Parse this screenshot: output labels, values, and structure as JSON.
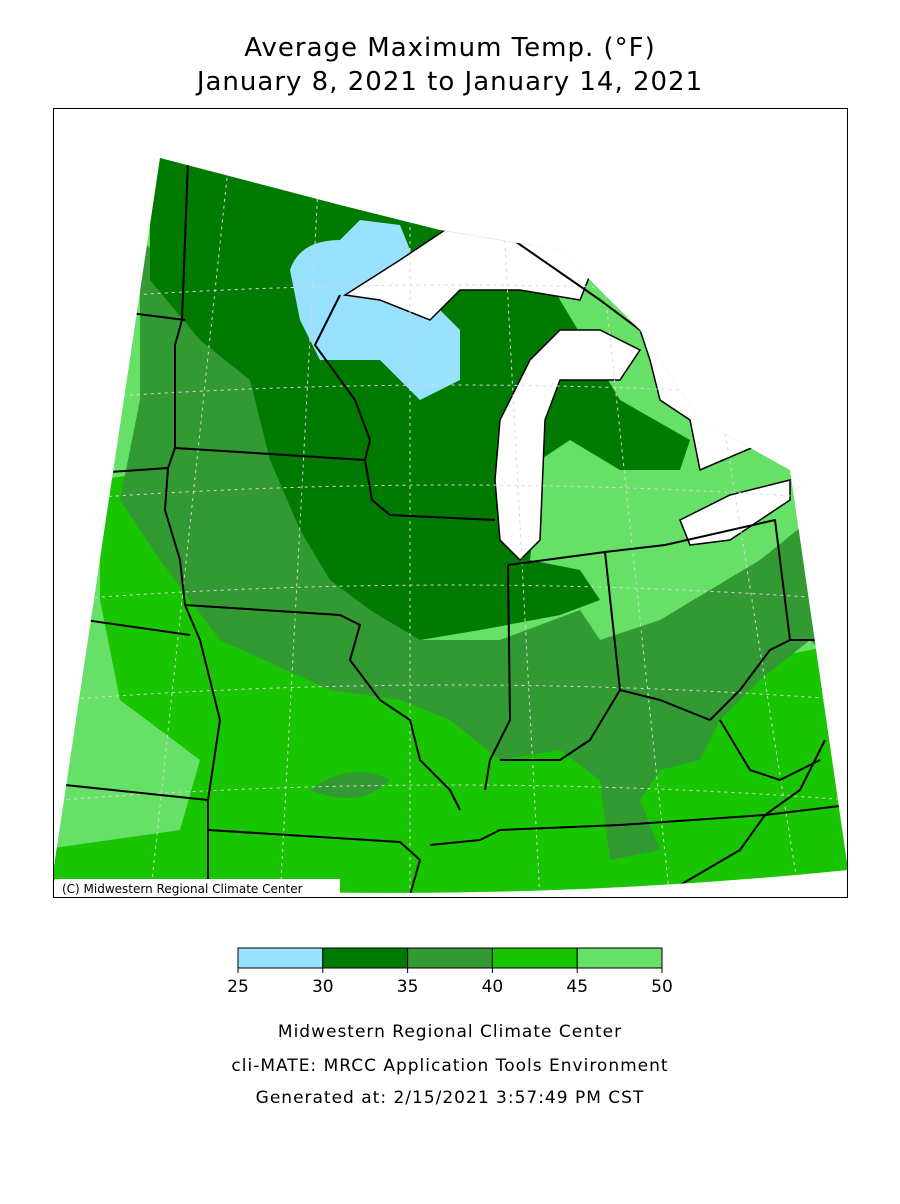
{
  "title": [
    "Average Maximum Temp. (°F)",
    "January 8, 2021 to January 14, 2021"
  ],
  "copyright": "(C) Midwestern Regional Climate Center",
  "legend": {
    "ticks": [
      25,
      30,
      35,
      40,
      45,
      50
    ],
    "colors": [
      "#99e2ff",
      "#007a00",
      "#339933",
      "#19c400",
      "#66e066"
    ]
  },
  "footer": [
    "Midwestern Regional Climate Center",
    "cli-MATE: MRCC Application Tools Environment",
    "Generated at: 2/15/2021 3:57:49 PM CST"
  ]
}
